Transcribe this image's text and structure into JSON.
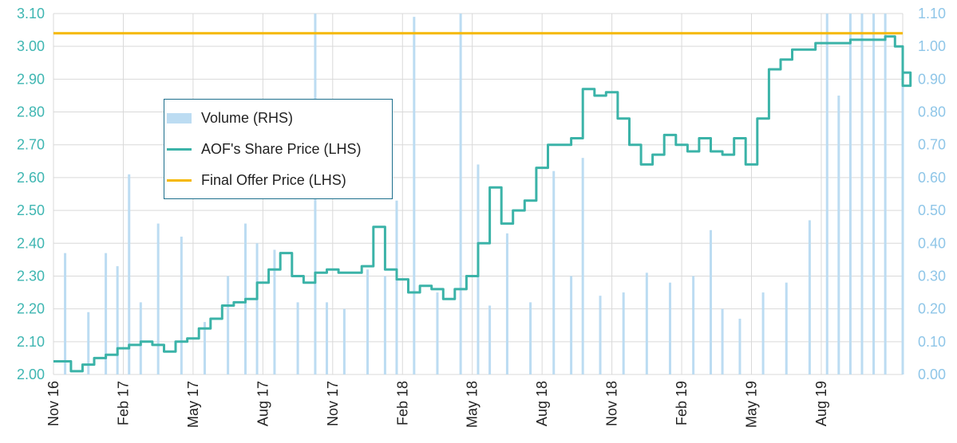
{
  "chart_data": {
    "type": "line",
    "title": "",
    "xlabel": "",
    "ylabel": "",
    "x_tick_labels": [
      "Nov 16",
      "Feb 17",
      "May 17",
      "Aug 17",
      "Nov 17",
      "Feb 18",
      "May 18",
      "Aug 18",
      "Nov 18",
      "Feb 19",
      "May 19",
      "Aug 19"
    ],
    "y_left_range": [
      2.0,
      3.1
    ],
    "y_left_ticks": [
      "2.00",
      "2.10",
      "2.20",
      "2.30",
      "2.40",
      "2.50",
      "2.60",
      "2.70",
      "2.80",
      "2.90",
      "3.00",
      "3.10"
    ],
    "y_right_range": [
      0.0,
      1.1
    ],
    "y_right_ticks": [
      "0.00",
      "0.10",
      "0.20",
      "0.30",
      "0.40",
      "0.50",
      "0.60",
      "0.70",
      "0.80",
      "0.90",
      "1.00",
      "1.10"
    ],
    "grid": true,
    "legend_position": "center-left",
    "series": [
      {
        "name": "Volume (RHS)",
        "axis": "right",
        "kind": "bar",
        "color": "#bcdcf2",
        "points": [
          [
            "Nov 16",
            0.37
          ],
          [
            "Dec 16",
            0.19
          ],
          [
            "Jan 17",
            0.37
          ],
          [
            "Jan 17",
            0.33
          ],
          [
            "Feb 17",
            0.61
          ],
          [
            "Feb 17",
            0.22
          ],
          [
            "Mar 17",
            0.46
          ],
          [
            "Apr 17",
            0.42
          ],
          [
            "May 17",
            0.16
          ],
          [
            "Jun 17",
            0.3
          ],
          [
            "Jul 17",
            0.46
          ],
          [
            "Jul 17",
            0.4
          ],
          [
            "Aug 17",
            0.38
          ],
          [
            "Sep 17",
            0.22
          ],
          [
            "Oct 17",
            1.1
          ],
          [
            "Oct 17",
            0.22
          ],
          [
            "Nov 17",
            0.2
          ],
          [
            "Dec 17",
            0.32
          ],
          [
            "Jan 18",
            0.3
          ],
          [
            "Jan 18",
            0.53
          ],
          [
            "Feb 18",
            1.09
          ],
          [
            "Mar 18",
            0.25
          ],
          [
            "Apr 18",
            1.1
          ],
          [
            "May 18",
            0.64
          ],
          [
            "May 18",
            0.21
          ],
          [
            "Jun 18",
            0.43
          ],
          [
            "Jul 18",
            0.22
          ],
          [
            "Aug 18",
            0.62
          ],
          [
            "Sep 18",
            0.3
          ],
          [
            "Sep 18",
            0.66
          ],
          [
            "Oct 18",
            0.24
          ],
          [
            "Nov 18",
            0.25
          ],
          [
            "Dec 18",
            0.31
          ],
          [
            "Jan 19",
            0.28
          ],
          [
            "Feb 19",
            0.3
          ],
          [
            "Mar 19",
            0.44
          ],
          [
            "Mar 19",
            0.2
          ],
          [
            "Apr 19",
            0.17
          ],
          [
            "May 19",
            0.25
          ],
          [
            "Jun 19",
            0.28
          ],
          [
            "Jul 19",
            0.47
          ],
          [
            "Aug 19",
            1.1
          ],
          [
            "Aug 19",
            0.85
          ],
          [
            "Sep 19",
            1.1
          ],
          [
            "Sep 19",
            1.1
          ],
          [
            "Oct 19",
            1.1
          ],
          [
            "Oct 19",
            1.1
          ],
          [
            "Nov 19",
            0.92
          ]
        ]
      },
      {
        "name": "AOF's Share Price (LHS)",
        "axis": "left",
        "kind": "line",
        "color": "#3bb3a8",
        "points": [
          [
            "Nov 16",
            2.04
          ],
          [
            "Nov 16",
            2.01
          ],
          [
            "Dec 16",
            2.03
          ],
          [
            "Dec 16",
            2.05
          ],
          [
            "Jan 17",
            2.06
          ],
          [
            "Jan 17",
            2.08
          ],
          [
            "Feb 17",
            2.09
          ],
          [
            "Feb 17",
            2.1
          ],
          [
            "Mar 17",
            2.09
          ],
          [
            "Mar 17",
            2.07
          ],
          [
            "Apr 17",
            2.1
          ],
          [
            "Apr 17",
            2.11
          ],
          [
            "May 17",
            2.14
          ],
          [
            "May 17",
            2.17
          ],
          [
            "Jun 17",
            2.21
          ],
          [
            "Jun 17",
            2.22
          ],
          [
            "Jul 17",
            2.23
          ],
          [
            "Jul 17",
            2.28
          ],
          [
            "Aug 17",
            2.32
          ],
          [
            "Aug 17",
            2.37
          ],
          [
            "Sep 17",
            2.3
          ],
          [
            "Sep 17",
            2.28
          ],
          [
            "Oct 17",
            2.31
          ],
          [
            "Oct 17",
            2.32
          ],
          [
            "Nov 17",
            2.31
          ],
          [
            "Nov 17",
            2.31
          ],
          [
            "Dec 17",
            2.33
          ],
          [
            "Dec 17",
            2.45
          ],
          [
            "Jan 18",
            2.32
          ],
          [
            "Jan 18",
            2.29
          ],
          [
            "Feb 18",
            2.25
          ],
          [
            "Feb 18",
            2.27
          ],
          [
            "Mar 18",
            2.26
          ],
          [
            "Mar 18",
            2.23
          ],
          [
            "Apr 18",
            2.26
          ],
          [
            "Apr 18",
            2.3
          ],
          [
            "May 18",
            2.4
          ],
          [
            "May 18",
            2.57
          ],
          [
            "Jun 18",
            2.46
          ],
          [
            "Jun 18",
            2.5
          ],
          [
            "Jul 18",
            2.53
          ],
          [
            "Jul 18",
            2.63
          ],
          [
            "Aug 18",
            2.7
          ],
          [
            "Aug 18",
            2.7
          ],
          [
            "Sep 18",
            2.72
          ],
          [
            "Sep 18",
            2.87
          ],
          [
            "Oct 18",
            2.85
          ],
          [
            "Oct 18",
            2.86
          ],
          [
            "Nov 18",
            2.78
          ],
          [
            "Nov 18",
            2.7
          ],
          [
            "Dec 18",
            2.64
          ],
          [
            "Dec 18",
            2.67
          ],
          [
            "Jan 19",
            2.73
          ],
          [
            "Jan 19",
            2.7
          ],
          [
            "Feb 19",
            2.68
          ],
          [
            "Feb 19",
            2.72
          ],
          [
            "Mar 19",
            2.68
          ],
          [
            "Mar 19",
            2.67
          ],
          [
            "Apr 19",
            2.72
          ],
          [
            "Apr 19",
            2.64
          ],
          [
            "May 19",
            2.78
          ],
          [
            "May 19",
            2.93
          ],
          [
            "Jun 19",
            2.96
          ],
          [
            "Jun 19",
            2.99
          ],
          [
            "Jul 19",
            2.99
          ],
          [
            "Jul 19",
            3.01
          ],
          [
            "Aug 19",
            3.01
          ],
          [
            "Aug 19",
            3.01
          ],
          [
            "Sep 19",
            3.02
          ],
          [
            "Sep 19",
            3.02
          ],
          [
            "Oct 19",
            3.02
          ],
          [
            "Oct 19",
            3.03
          ],
          [
            "Nov 19",
            3.0
          ],
          [
            "Nov 19",
            2.88
          ],
          [
            "Nov 19",
            2.92
          ]
        ]
      },
      {
        "name": "Final Offer Price (LHS)",
        "axis": "left",
        "kind": "line",
        "color": "#f5b800",
        "points": [
          [
            "Nov 16",
            3.04
          ],
          [
            "Nov 19",
            3.04
          ]
        ]
      }
    ]
  },
  "colors": {
    "left_axis": "#3fb6b2",
    "right_axis": "#8fc6e8",
    "grid": "#d9d9d9",
    "legend_border": "#1d6f8c"
  }
}
